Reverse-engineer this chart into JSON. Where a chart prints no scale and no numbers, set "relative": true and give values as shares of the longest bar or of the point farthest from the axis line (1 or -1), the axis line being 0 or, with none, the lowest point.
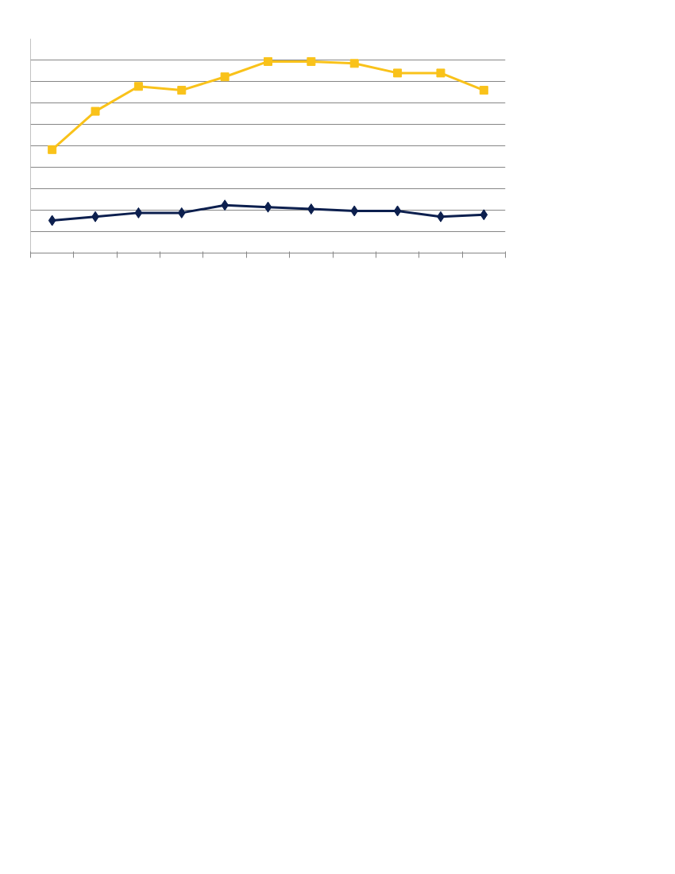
{
  "chart_data": {
    "type": "line",
    "relative": true,
    "grid": "y",
    "categories": [
      null,
      null,
      null,
      null,
      null,
      null,
      null,
      null,
      null,
      null,
      null
    ],
    "series": [
      {
        "color": "#0c1f4e",
        "marker": "diamond",
        "values": [
          0.17,
          0.19,
          0.21,
          0.21,
          0.25,
          0.24,
          0.23,
          0.22,
          0.22,
          0.19,
          0.2
        ]
      },
      {
        "color": "#f9c21a",
        "marker": "square",
        "values": [
          0.54,
          0.74,
          0.87,
          0.85,
          0.92,
          1.0,
          1.0,
          0.99,
          0.94,
          0.94,
          0.85
        ]
      }
    ]
  }
}
